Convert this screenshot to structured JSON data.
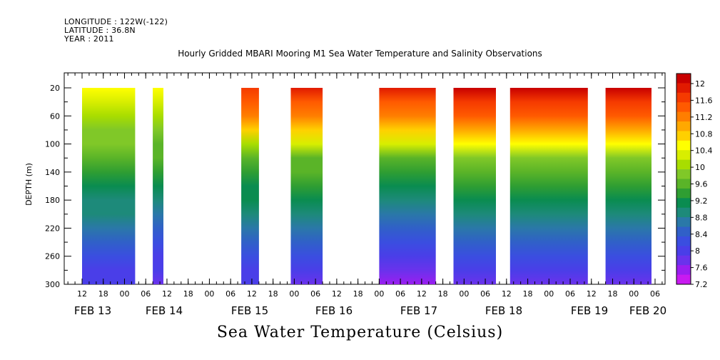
{
  "header": {
    "longitude": "LONGITUDE : 122W(-122)",
    "latitude": "LATITUDE : 36.8N",
    "year": "YEAR : 2011",
    "title": "Hourly Gridded MBARI Mooring M1 Sea Water Temperature and Salinity Observations"
  },
  "footer": {
    "title": "Sea Water Temperature (Celsius)"
  },
  "chart_data": {
    "type": "heatmap",
    "title": "Hourly Gridded MBARI Mooring M1 Sea Water Temperature and Salinity Observations",
    "xlabel": "",
    "ylabel": "DEPTH (m)",
    "colorbar_label": "Sea Water Temperature (Celsius)",
    "ylim": [
      300,
      0
    ],
    "y_ticks": [
      20,
      60,
      100,
      140,
      180,
      220,
      260,
      300
    ],
    "x_hour_ticks": [
      "12",
      "18",
      "00",
      "06",
      "12",
      "18",
      "00",
      "06",
      "12",
      "18",
      "00",
      "06",
      "12",
      "18",
      "00",
      "06",
      "12",
      "18",
      "00",
      "06",
      "12",
      "18",
      "00",
      "06",
      "12",
      "18",
      "00",
      "06",
      "12",
      "18",
      "00",
      "06"
    ],
    "x_date_labels": [
      "FEB 13",
      "FEB 14",
      "FEB 15",
      "FEB 16",
      "FEB 17",
      "FEB 18",
      "FEB 19",
      "FEB 20"
    ],
    "colorbar_levels": [
      12,
      11.6,
      11.2,
      10.8,
      10.4,
      10,
      9.6,
      9.2,
      8.8,
      8.4,
      8,
      7.6,
      7.2
    ],
    "colors": [
      "#c80000",
      "#e11a00",
      "#f53a00",
      "#ff5a00",
      "#ff7e00",
      "#ffa800",
      "#ffd000",
      "#ffff00",
      "#d8ee00",
      "#a8dd00",
      "#80c828",
      "#5ab428",
      "#2f9e32",
      "#0a8c50",
      "#1d8a7a",
      "#2a78a8",
      "#3060c8",
      "#3a4ee0",
      "#4a3ee8",
      "#6a32ec",
      "#9a1ef0",
      "#c81af0"
    ],
    "data_segments": [
      {
        "start": "FEB 13 12:00",
        "end": "FEB 14 03:00",
        "surface_temp": 10.5,
        "temp_300m": 7.8
      },
      {
        "start": "FEB 14 08:00",
        "end": "FEB 14 11:00",
        "surface_temp": 10.5,
        "temp_300m": 7.6
      },
      {
        "start": "FEB 15 09:00",
        "end": "FEB 15 14:00",
        "surface_temp": 11.8,
        "temp_300m": 7.8
      },
      {
        "start": "FEB 15 23:00",
        "end": "FEB 16 08:00",
        "surface_temp": 11.9,
        "temp_300m": 7.7
      },
      {
        "start": "FEB 17 00:00",
        "end": "FEB 17 16:00",
        "surface_temp": 11.9,
        "temp_300m": 7.4
      },
      {
        "start": "FEB 17 21:00",
        "end": "FEB 18 09:00",
        "surface_temp": 12.1,
        "temp_300m": 7.7
      },
      {
        "start": "FEB 18 13:00",
        "end": "FEB 19 11:00",
        "surface_temp": 12.1,
        "temp_300m": 7.7
      },
      {
        "start": "FEB 19 16:00",
        "end": "FEB 20 05:00",
        "surface_temp": 12.1,
        "temp_300m": 7.7
      }
    ]
  }
}
